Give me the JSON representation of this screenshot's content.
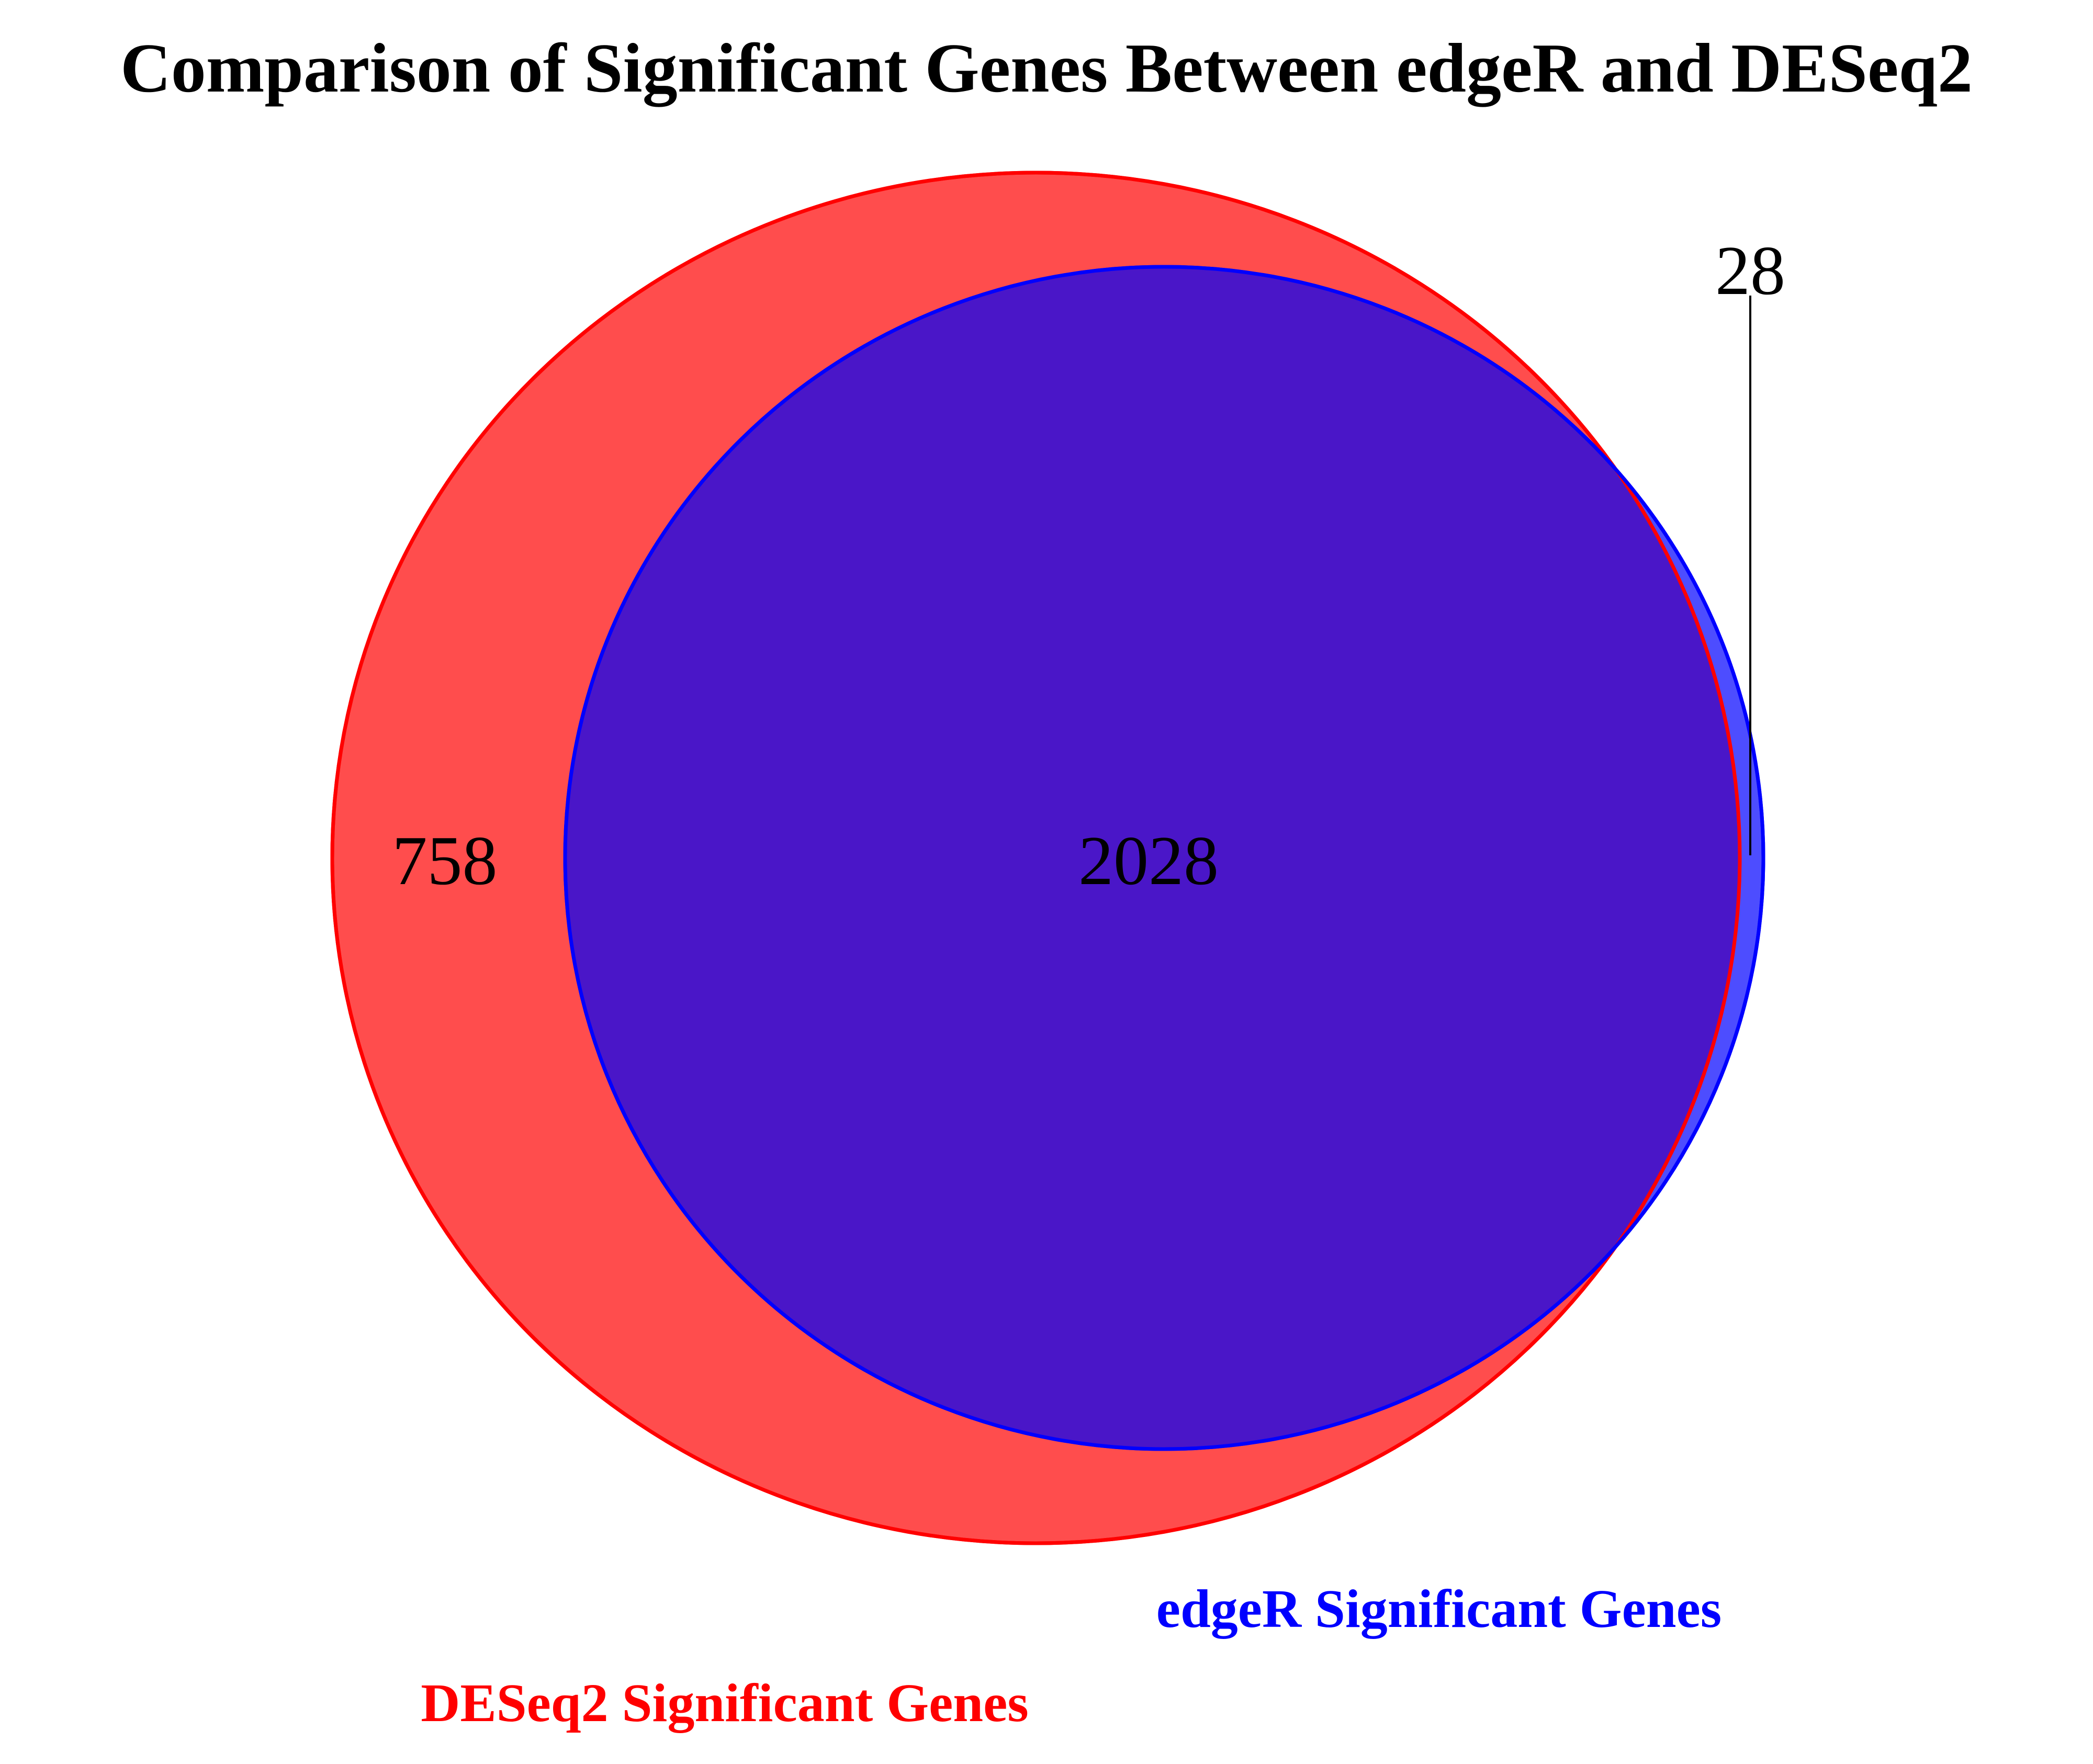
{
  "title": "Comparison of Significant Genes Between edgeR and DESeq2",
  "sets": [
    {
      "id": "deseq2",
      "label": "DESeq2 Significant Genes",
      "color": "#ff0000",
      "fill": "#ff4d4d"
    },
    {
      "id": "edger",
      "label": "edgeR Significant Genes",
      "color": "#0000ff",
      "fill": "#4d4dff"
    }
  ],
  "overlap_fill": "#4a16c8",
  "regions": {
    "deseq2_only": "758",
    "both": "2028",
    "edger_only": "28"
  }
}
